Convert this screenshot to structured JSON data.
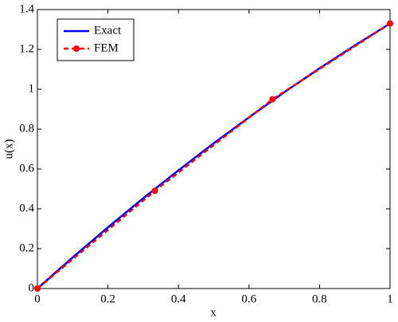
{
  "chart_data": {
    "type": "line",
    "xlabel": "x",
    "ylabel": "u(x)",
    "xlim": [
      0,
      1
    ],
    "ylim": [
      0,
      1.4
    ],
    "xticks": [
      0,
      0.2,
      0.4,
      0.6,
      0.8,
      1
    ],
    "yticks": [
      0,
      0.2,
      0.4,
      0.6,
      0.8,
      1,
      1.2,
      1.4
    ],
    "legend": "upper left",
    "series": [
      {
        "name": "Exact",
        "color": "#0000ff",
        "style": "solid",
        "x": [
          0,
          0.1,
          0.2,
          0.3,
          0.4,
          0.5,
          0.6,
          0.7,
          0.8,
          0.9,
          1
        ],
        "values": [
          0,
          0.156,
          0.307,
          0.453,
          0.593,
          0.729,
          0.859,
          0.985,
          1.105,
          1.22,
          1.33
        ]
      },
      {
        "name": "FEM",
        "color": "#ff0000",
        "style": "dashed",
        "marker": "circle",
        "x": [
          0,
          0.333,
          0.667,
          1
        ],
        "values": [
          0,
          0.49,
          0.95,
          1.33
        ]
      }
    ]
  }
}
